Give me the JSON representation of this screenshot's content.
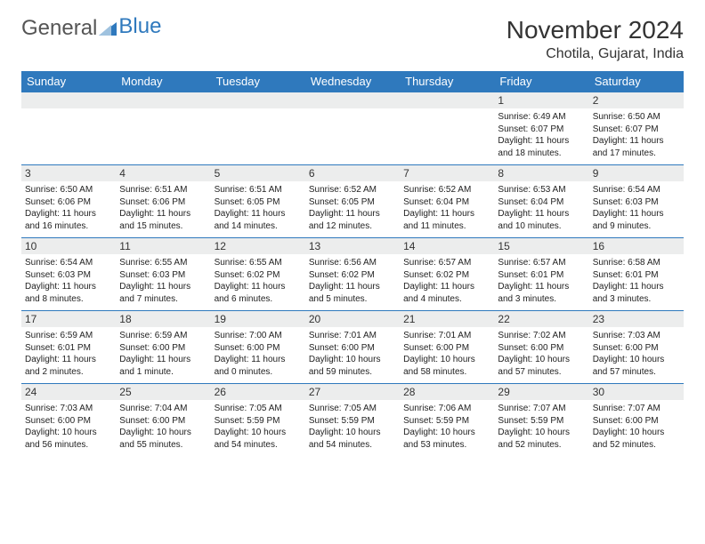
{
  "brand": {
    "part1": "General",
    "part2": "Blue"
  },
  "title": "November 2024",
  "location": "Chotila, Gujarat, India",
  "colors": {
    "header_bg": "#2f79bd",
    "header_text": "#ffffff",
    "daynum_bg": "#eceded",
    "cell_border": "#2f79bd",
    "text": "#222222",
    "page_bg": "#ffffff"
  },
  "typography": {
    "title_fontsize": 28,
    "location_fontsize": 16,
    "weekday_fontsize": 13,
    "daynum_fontsize": 12,
    "body_fontsize": 10
  },
  "weekdays": [
    "Sunday",
    "Monday",
    "Tuesday",
    "Wednesday",
    "Thursday",
    "Friday",
    "Saturday"
  ],
  "weeks": [
    [
      {
        "n": "",
        "sr": "",
        "ss": "",
        "dl": ""
      },
      {
        "n": "",
        "sr": "",
        "ss": "",
        "dl": ""
      },
      {
        "n": "",
        "sr": "",
        "ss": "",
        "dl": ""
      },
      {
        "n": "",
        "sr": "",
        "ss": "",
        "dl": ""
      },
      {
        "n": "",
        "sr": "",
        "ss": "",
        "dl": ""
      },
      {
        "n": "1",
        "sr": "Sunrise: 6:49 AM",
        "ss": "Sunset: 6:07 PM",
        "dl": "Daylight: 11 hours and 18 minutes."
      },
      {
        "n": "2",
        "sr": "Sunrise: 6:50 AM",
        "ss": "Sunset: 6:07 PM",
        "dl": "Daylight: 11 hours and 17 minutes."
      }
    ],
    [
      {
        "n": "3",
        "sr": "Sunrise: 6:50 AM",
        "ss": "Sunset: 6:06 PM",
        "dl": "Daylight: 11 hours and 16 minutes."
      },
      {
        "n": "4",
        "sr": "Sunrise: 6:51 AM",
        "ss": "Sunset: 6:06 PM",
        "dl": "Daylight: 11 hours and 15 minutes."
      },
      {
        "n": "5",
        "sr": "Sunrise: 6:51 AM",
        "ss": "Sunset: 6:05 PM",
        "dl": "Daylight: 11 hours and 14 minutes."
      },
      {
        "n": "6",
        "sr": "Sunrise: 6:52 AM",
        "ss": "Sunset: 6:05 PM",
        "dl": "Daylight: 11 hours and 12 minutes."
      },
      {
        "n": "7",
        "sr": "Sunrise: 6:52 AM",
        "ss": "Sunset: 6:04 PM",
        "dl": "Daylight: 11 hours and 11 minutes."
      },
      {
        "n": "8",
        "sr": "Sunrise: 6:53 AM",
        "ss": "Sunset: 6:04 PM",
        "dl": "Daylight: 11 hours and 10 minutes."
      },
      {
        "n": "9",
        "sr": "Sunrise: 6:54 AM",
        "ss": "Sunset: 6:03 PM",
        "dl": "Daylight: 11 hours and 9 minutes."
      }
    ],
    [
      {
        "n": "10",
        "sr": "Sunrise: 6:54 AM",
        "ss": "Sunset: 6:03 PM",
        "dl": "Daylight: 11 hours and 8 minutes."
      },
      {
        "n": "11",
        "sr": "Sunrise: 6:55 AM",
        "ss": "Sunset: 6:03 PM",
        "dl": "Daylight: 11 hours and 7 minutes."
      },
      {
        "n": "12",
        "sr": "Sunrise: 6:55 AM",
        "ss": "Sunset: 6:02 PM",
        "dl": "Daylight: 11 hours and 6 minutes."
      },
      {
        "n": "13",
        "sr": "Sunrise: 6:56 AM",
        "ss": "Sunset: 6:02 PM",
        "dl": "Daylight: 11 hours and 5 minutes."
      },
      {
        "n": "14",
        "sr": "Sunrise: 6:57 AM",
        "ss": "Sunset: 6:02 PM",
        "dl": "Daylight: 11 hours and 4 minutes."
      },
      {
        "n": "15",
        "sr": "Sunrise: 6:57 AM",
        "ss": "Sunset: 6:01 PM",
        "dl": "Daylight: 11 hours and 3 minutes."
      },
      {
        "n": "16",
        "sr": "Sunrise: 6:58 AM",
        "ss": "Sunset: 6:01 PM",
        "dl": "Daylight: 11 hours and 3 minutes."
      }
    ],
    [
      {
        "n": "17",
        "sr": "Sunrise: 6:59 AM",
        "ss": "Sunset: 6:01 PM",
        "dl": "Daylight: 11 hours and 2 minutes."
      },
      {
        "n": "18",
        "sr": "Sunrise: 6:59 AM",
        "ss": "Sunset: 6:00 PM",
        "dl": "Daylight: 11 hours and 1 minute."
      },
      {
        "n": "19",
        "sr": "Sunrise: 7:00 AM",
        "ss": "Sunset: 6:00 PM",
        "dl": "Daylight: 11 hours and 0 minutes."
      },
      {
        "n": "20",
        "sr": "Sunrise: 7:01 AM",
        "ss": "Sunset: 6:00 PM",
        "dl": "Daylight: 10 hours and 59 minutes."
      },
      {
        "n": "21",
        "sr": "Sunrise: 7:01 AM",
        "ss": "Sunset: 6:00 PM",
        "dl": "Daylight: 10 hours and 58 minutes."
      },
      {
        "n": "22",
        "sr": "Sunrise: 7:02 AM",
        "ss": "Sunset: 6:00 PM",
        "dl": "Daylight: 10 hours and 57 minutes."
      },
      {
        "n": "23",
        "sr": "Sunrise: 7:03 AM",
        "ss": "Sunset: 6:00 PM",
        "dl": "Daylight: 10 hours and 57 minutes."
      }
    ],
    [
      {
        "n": "24",
        "sr": "Sunrise: 7:03 AM",
        "ss": "Sunset: 6:00 PM",
        "dl": "Daylight: 10 hours and 56 minutes."
      },
      {
        "n": "25",
        "sr": "Sunrise: 7:04 AM",
        "ss": "Sunset: 6:00 PM",
        "dl": "Daylight: 10 hours and 55 minutes."
      },
      {
        "n": "26",
        "sr": "Sunrise: 7:05 AM",
        "ss": "Sunset: 5:59 PM",
        "dl": "Daylight: 10 hours and 54 minutes."
      },
      {
        "n": "27",
        "sr": "Sunrise: 7:05 AM",
        "ss": "Sunset: 5:59 PM",
        "dl": "Daylight: 10 hours and 54 minutes."
      },
      {
        "n": "28",
        "sr": "Sunrise: 7:06 AM",
        "ss": "Sunset: 5:59 PM",
        "dl": "Daylight: 10 hours and 53 minutes."
      },
      {
        "n": "29",
        "sr": "Sunrise: 7:07 AM",
        "ss": "Sunset: 5:59 PM",
        "dl": "Daylight: 10 hours and 52 minutes."
      },
      {
        "n": "30",
        "sr": "Sunrise: 7:07 AM",
        "ss": "Sunset: 6:00 PM",
        "dl": "Daylight: 10 hours and 52 minutes."
      }
    ]
  ]
}
